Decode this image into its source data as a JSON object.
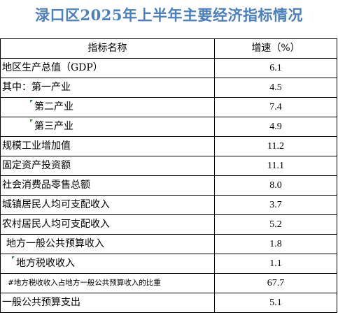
{
  "title": "渌口区2025年上半年主要经济指标情况",
  "table": {
    "headers": [
      "指标名称",
      "增速（%）"
    ],
    "rows": [
      {
        "name": "地区生产总值（GDP）",
        "value": "6.1"
      },
      {
        "name": "其中：第一产业",
        "value": "4.5"
      },
      {
        "name": "第二产业",
        "value": "7.4"
      },
      {
        "name": "第三产业",
        "value": "4.9"
      },
      {
        "name": "规模工业增加值",
        "value": "11.2"
      },
      {
        "name": "固定资产投资额",
        "value": "11.1"
      },
      {
        "name": "社会消费品零售总额",
        "value": "8.0"
      },
      {
        "name": "城镇居民人均可支配收入",
        "value": "3.7"
      },
      {
        "name": "农村居民人均可支配收入",
        "value": "5.2"
      },
      {
        "name": "地方一般公共预算收入",
        "value": "1.8"
      },
      {
        "name": "地方税收收入",
        "value": "1.1"
      },
      {
        "name": "#地方税收收入占地方一般公共预算收入的比重",
        "value": "67.7"
      },
      {
        "name": "一般公共预算支出",
        "value": "5.1"
      }
    ]
  }
}
